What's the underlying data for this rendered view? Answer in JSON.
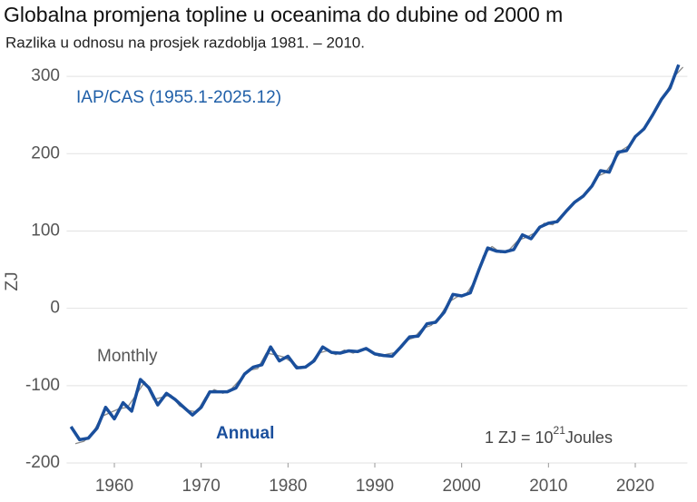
{
  "chart_data": {
    "type": "line",
    "title": "Globalna promjena topline u oceanima do dubine od 2000 m",
    "subtitle": "Razlika u odnosu na prosjek razdoblja 1981. – 2010.",
    "y_label": "ZJ",
    "annotations": {
      "source": "IAP/CAS (1955.1-2025.12)",
      "monthly": "Monthly",
      "annual": "Annual",
      "unit_a": "1 ZJ =  10",
      "unit_exp": "21",
      "unit_b": "Joules"
    },
    "xlim": [
      1954.5,
      2026
    ],
    "ylim": [
      -200,
      340
    ],
    "xticks": [
      1960,
      1970,
      1980,
      1990,
      2000,
      2010,
      2020
    ],
    "yticks": [
      -200,
      -100,
      0,
      100,
      200,
      300
    ],
    "grid": true,
    "series": [
      {
        "name": "Monthly",
        "color": "#8a8a8a",
        "x": [
          1955.5,
          1956.5,
          1957.5,
          1958.5,
          1959.5,
          1960.5,
          1961.5,
          1962.5,
          1963.5,
          1964.5,
          1965.5,
          1966.5,
          1967.5,
          1968.5,
          1969.5,
          1970.5,
          1971.5,
          1972.5,
          1973.5,
          1974.5,
          1975.5,
          1976.5,
          1977.5,
          1978.5,
          1979.5,
          1980.5,
          1981.5,
          1982.5,
          1983.5,
          1984.5,
          1985.5,
          1986.5,
          1987.5,
          1988.5,
          1989.5,
          1990.5,
          1991.5,
          1992.5,
          1993.5,
          1994.5,
          1995.5,
          1996.5,
          1997.5,
          1998.5,
          1999.5,
          2000.5,
          2001.5,
          2002.5,
          2003.5,
          2004.5,
          2005.5,
          2006.5,
          2007.5,
          2008.5,
          2009.5,
          2010.5,
          2011.5,
          2012.5,
          2013.5,
          2014.5,
          2015.5,
          2016.5,
          2017.5,
          2018.5,
          2019.5,
          2020.5,
          2021.5,
          2022.5,
          2023.5,
          2024.5,
          2025.5
        ],
        "values": [
          -175,
          -172,
          -162,
          -140,
          -135,
          -130,
          -128,
          -112,
          -95,
          -118,
          -115,
          -112,
          -126,
          -132,
          -134,
          -115,
          -105,
          -110,
          -104,
          -92,
          -80,
          -78,
          -58,
          -60,
          -63,
          -70,
          -78,
          -72,
          -58,
          -55,
          -60,
          -54,
          -58,
          -53,
          -55,
          -62,
          -59,
          -57,
          -42,
          -38,
          -26,
          -22,
          -10,
          8,
          15,
          18,
          35,
          68,
          80,
          72,
          76,
          88,
          92,
          98,
          110,
          108,
          120,
          130,
          142,
          150,
          170,
          175,
          190,
          205,
          212,
          228,
          240,
          262,
          278,
          300,
          312
        ]
      },
      {
        "name": "Annual",
        "color": "#1a4f9c",
        "x": [
          1955,
          1956,
          1957,
          1958,
          1959,
          1960,
          1961,
          1962,
          1963,
          1964,
          1965,
          1966,
          1967,
          1968,
          1969,
          1970,
          1971,
          1972,
          1973,
          1974,
          1975,
          1976,
          1977,
          1978,
          1979,
          1980,
          1981,
          1982,
          1983,
          1984,
          1985,
          1986,
          1987,
          1988,
          1989,
          1990,
          1991,
          1992,
          1993,
          1994,
          1995,
          1996,
          1997,
          1998,
          1999,
          2000,
          2001,
          2002,
          2003,
          2004,
          2005,
          2006,
          2007,
          2008,
          2009,
          2010,
          2011,
          2012,
          2013,
          2014,
          2015,
          2016,
          2017,
          2018,
          2019,
          2020,
          2021,
          2022,
          2023,
          2024,
          2025
        ],
        "values": [
          -153,
          -170,
          -168,
          -155,
          -128,
          -143,
          -122,
          -133,
          -92,
          -103,
          -125,
          -110,
          -118,
          -128,
          -138,
          -128,
          -108,
          -108,
          -108,
          -103,
          -85,
          -76,
          -73,
          -50,
          -68,
          -62,
          -77,
          -76,
          -68,
          -50,
          -57,
          -58,
          -55,
          -56,
          -52,
          -59,
          -61,
          -62,
          -50,
          -37,
          -36,
          -20,
          -18,
          -5,
          18,
          16,
          20,
          50,
          78,
          74,
          73,
          76,
          95,
          90,
          105,
          110,
          112,
          125,
          137,
          145,
          158,
          178,
          176,
          202,
          204,
          222,
          232,
          250,
          270,
          285,
          315
        ]
      }
    ]
  }
}
